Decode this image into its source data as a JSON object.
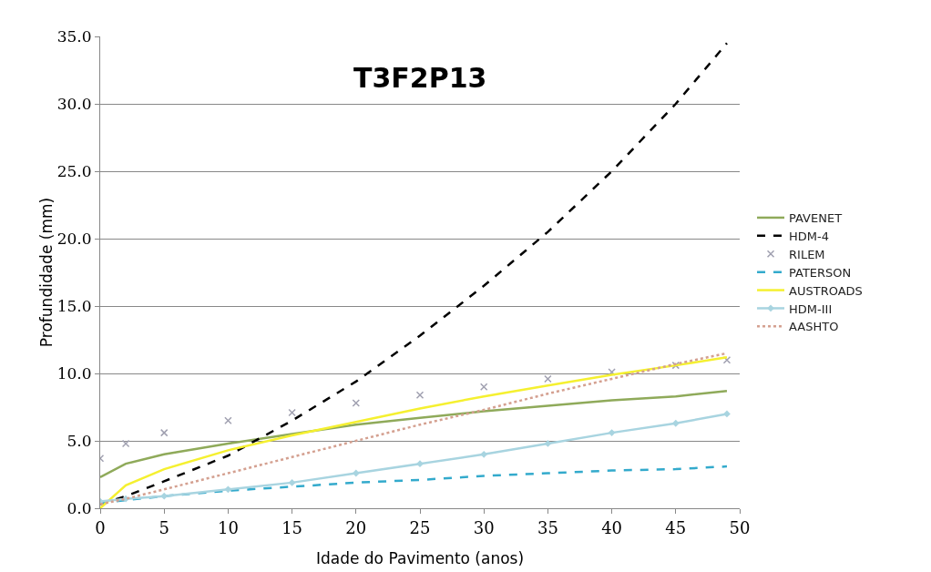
{
  "chart_data": {
    "type": "line",
    "title": "T3F2P13",
    "xlabel": "Idade do Pavimento (anos)",
    "ylabel": "Profundidade (mm)",
    "x": [
      0,
      2,
      5,
      10,
      15,
      20,
      25,
      30,
      35,
      40,
      45,
      49
    ],
    "xlim": [
      0,
      50
    ],
    "xticks": [
      0,
      5,
      10,
      15,
      20,
      25,
      30,
      35,
      40,
      45,
      50
    ],
    "ylim": [
      0,
      35
    ],
    "yticks": [
      {
        "value": 0,
        "label": "0.0"
      },
      {
        "value": 5,
        "label": "5.0"
      },
      {
        "value": 10,
        "label": "10.0"
      },
      {
        "value": 15,
        "label": "15.0"
      },
      {
        "value": 20,
        "label": "20.0"
      },
      {
        "value": 25,
        "label": "25.0"
      },
      {
        "value": 30,
        "label": "30.0"
      },
      {
        "value": 35,
        "label": "35.0"
      }
    ],
    "grid": "y",
    "legend": "right",
    "marker": "none",
    "series": [
      {
        "name": "PAVENET",
        "color": "#8faa5a",
        "line_style": "solid",
        "values": [
          2.3,
          3.3,
          4.0,
          4.8,
          5.5,
          6.2,
          6.7,
          7.2,
          7.6,
          8.0,
          8.3,
          8.7
        ]
      },
      {
        "name": "HDM-4",
        "color": "#000000",
        "line_style": "dashed",
        "values": [
          0.3,
          0.9,
          2.0,
          3.9,
          6.5,
          9.4,
          12.8,
          16.5,
          20.5,
          25.0,
          30.0,
          34.5
        ]
      },
      {
        "name": "RILEM",
        "color": "#a0a0b0",
        "type": "scatter",
        "marker": "cross",
        "values": [
          3.7,
          4.8,
          5.6,
          6.5,
          7.1,
          7.8,
          8.4,
          9.0,
          9.6,
          10.1,
          10.6,
          11.0
        ]
      },
      {
        "name": "PATERSON",
        "color": "#33aacc",
        "line_style": "dashed",
        "values": [
          0.4,
          0.6,
          0.9,
          1.3,
          1.6,
          1.9,
          2.1,
          2.4,
          2.6,
          2.8,
          2.9,
          3.1
        ]
      },
      {
        "name": "AUSTROADS",
        "color": "#f5f030",
        "line_style": "solid",
        "values": [
          0.0,
          1.7,
          2.9,
          4.3,
          5.4,
          6.4,
          7.4,
          8.3,
          9.1,
          9.9,
          10.6,
          11.2
        ]
      },
      {
        "name": "HDM-III",
        "color": "#a8d4e0",
        "line_style": "solid",
        "marker": "diamond",
        "values": [
          0.5,
          0.7,
          0.9,
          1.4,
          1.9,
          2.6,
          3.3,
          4.0,
          4.8,
          5.6,
          6.3,
          7.0
        ]
      },
      {
        "name": "AASHTO",
        "color": "#d4a090",
        "line_style": "dotted",
        "values": [
          0.3,
          0.7,
          1.4,
          2.6,
          3.8,
          5.0,
          6.2,
          7.3,
          8.5,
          9.6,
          10.7,
          11.5
        ]
      }
    ]
  }
}
